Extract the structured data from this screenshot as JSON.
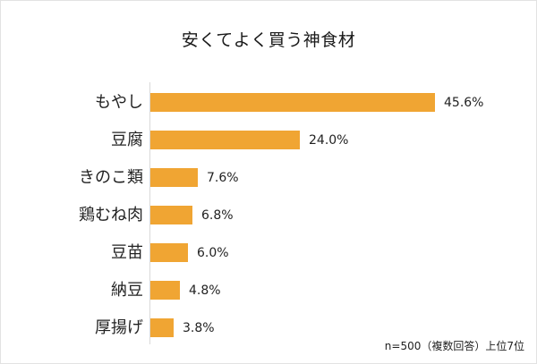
{
  "chart_data": {
    "type": "bar",
    "orientation": "horizontal",
    "title": "安くてよく買う神食材",
    "categories": [
      "もやし",
      "豆腐",
      "きのこ類",
      "鶏むね肉",
      "豆苗",
      "納豆",
      "厚揚げ"
    ],
    "values": [
      45.6,
      24.0,
      7.6,
      6.8,
      6.0,
      4.8,
      3.8
    ],
    "value_labels": [
      "45.6%",
      "24.0%",
      "7.6%",
      "6.8%",
      "6.0%",
      "4.8%",
      "3.8%"
    ],
    "unit": "%",
    "xlabel": "",
    "ylabel": "",
    "xlim": [
      0,
      50
    ],
    "grid": false,
    "legend": null,
    "bar_color": "#f0a533",
    "annotation": "n=500（複数回答）上位7位"
  },
  "title": "安くてよく買う神食材",
  "note": "n=500（複数回答）上位7位",
  "rows": [
    {
      "label": "もやし",
      "value": 45.6,
      "value_label": "45.6%"
    },
    {
      "label": "豆腐",
      "value": 24.0,
      "value_label": "24.0%"
    },
    {
      "label": "きのこ類",
      "value": 7.6,
      "value_label": "7.6%"
    },
    {
      "label": "鶏むね肉",
      "value": 6.8,
      "value_label": "6.8%"
    },
    {
      "label": "豆苗",
      "value": 6.0,
      "value_label": "6.0%"
    },
    {
      "label": "納豆",
      "value": 4.8,
      "value_label": "4.8%"
    },
    {
      "label": "厚揚げ",
      "value": 3.8,
      "value_label": "3.8%"
    }
  ]
}
